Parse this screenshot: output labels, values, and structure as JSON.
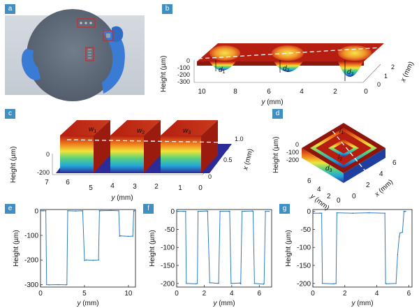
{
  "panel_labels": [
    "a",
    "b",
    "c",
    "d",
    "e",
    "f",
    "g"
  ],
  "panel_b": {
    "y_ticks": [
      "10",
      "8",
      "6",
      "4",
      "2",
      "0"
    ],
    "z_ticks": [
      "0",
      "-100",
      "-200",
      "-300"
    ],
    "x_ticks": [
      "0",
      "1",
      "2"
    ],
    "zlabel": "Height (µm)",
    "ylabel_var": "y",
    "ylabel_unit": " (mm)",
    "xlabel_var": "x",
    "xlabel_unit": " (mm)",
    "depth_labels": [
      "d",
      "d",
      "d"
    ],
    "depth_subs": [
      "1",
      "2",
      "3"
    ]
  },
  "panel_c": {
    "y_ticks": [
      "7",
      "6",
      "5",
      "4",
      "3",
      "2",
      "1",
      "0"
    ],
    "z_ticks": [
      "0",
      "-200"
    ],
    "x_ticks": [
      "1.0",
      "0.5",
      "0"
    ],
    "zlabel": "Height (µm)",
    "ylabel_var": "y",
    "ylabel_unit": " (mm)",
    "xlabel_var": "x",
    "xlabel_unit": " (mm)",
    "width_labels": [
      "w",
      "w",
      "w"
    ],
    "width_subs": [
      "1",
      "2",
      "3"
    ]
  },
  "panel_d": {
    "z_ticks": [
      "0",
      "-100",
      "-200"
    ],
    "y_ticks": [
      "6",
      "4",
      "2",
      "0"
    ],
    "x_ticks": [
      "0",
      "2",
      "4",
      "6"
    ],
    "zlabel": "Height (µm)",
    "ylabel_var": "y",
    "ylabel_unit": " (mm)",
    "xlabel_var": "x",
    "xlabel_unit": " (mm)",
    "labels": [
      "l",
      "l",
      "d"
    ],
    "subs": [
      "1",
      "2",
      "3"
    ]
  },
  "chart_data": [
    {
      "type": "line",
      "panel": "e",
      "xlabel_var": "y",
      "xlabel_unit": " (mm)",
      "ylabel": "Height (µm)",
      "xlim": [
        0,
        10.8
      ],
      "ylim": [
        -310,
        5
      ],
      "x_ticks": [
        0,
        5,
        10
      ],
      "y_ticks": [
        0,
        -100,
        -200,
        -300
      ],
      "x": [
        0.05,
        0.3,
        0.6,
        0.7,
        1.0,
        2.0,
        2.9,
        3.0,
        3.1,
        4.0,
        4.8,
        5.0,
        5.2,
        6.0,
        6.6,
        6.7,
        6.8,
        8.0,
        8.9,
        9.0,
        9.1,
        10.0,
        10.5,
        10.6,
        10.7
      ],
      "y": [
        0,
        0,
        0,
        -300,
        -301,
        -300,
        -301,
        -300,
        0,
        -1,
        0,
        -202,
        -200,
        -201,
        -200,
        0,
        0,
        1,
        0,
        -103,
        -102,
        -104,
        -103,
        0,
        0
      ]
    },
    {
      "type": "line",
      "panel": "f",
      "xlabel_var": "y",
      "xlabel_unit": " (mm)",
      "ylabel": "Height (µm)",
      "xlim": [
        0,
        6.9
      ],
      "ylim": [
        -210,
        5
      ],
      "x_ticks": [
        0,
        2,
        4,
        6
      ],
      "y_ticks": [
        0,
        -50,
        -100,
        -150,
        -200
      ],
      "x": [
        0.05,
        0.5,
        0.65,
        0.7,
        1.4,
        1.5,
        1.55,
        2.2,
        2.25,
        2.4,
        3.0,
        3.05,
        3.15,
        3.8,
        3.85,
        3.95,
        4.6,
        4.65,
        4.75,
        5.5,
        5.55,
        5.65,
        6.3,
        6.35,
        6.45,
        6.7
      ],
      "y": [
        0,
        0,
        0,
        -200,
        -201,
        -200,
        0,
        1,
        0,
        -198,
        -200,
        -199,
        0,
        0,
        0,
        -200,
        -199,
        -201,
        0,
        1,
        0,
        -200,
        -202,
        -200,
        0,
        0
      ]
    },
    {
      "type": "line",
      "panel": "g",
      "xlabel_var": "y",
      "xlabel_unit": " (mm)",
      "ylabel": "Height (µm)",
      "xlim": [
        0,
        6.2
      ],
      "ylim": [
        -210,
        5
      ],
      "x_ticks": [
        0,
        2,
        4,
        6
      ],
      "y_ticks": [
        0,
        -50,
        -100,
        -150,
        -200
      ],
      "x": [
        0.05,
        0.45,
        0.55,
        0.6,
        1.3,
        1.45,
        1.5,
        2.5,
        3.5,
        4.5,
        4.55,
        4.6,
        5.2,
        5.3,
        5.4,
        5.45,
        5.6,
        5.7,
        5.75,
        5.8
      ],
      "y": [
        -5,
        -5,
        -5,
        -200,
        -201,
        -200,
        -4,
        -5,
        -4,
        -5,
        -200,
        -201,
        -200,
        -120,
        -70,
        -60,
        -58,
        0,
        0,
        0
      ]
    }
  ]
}
